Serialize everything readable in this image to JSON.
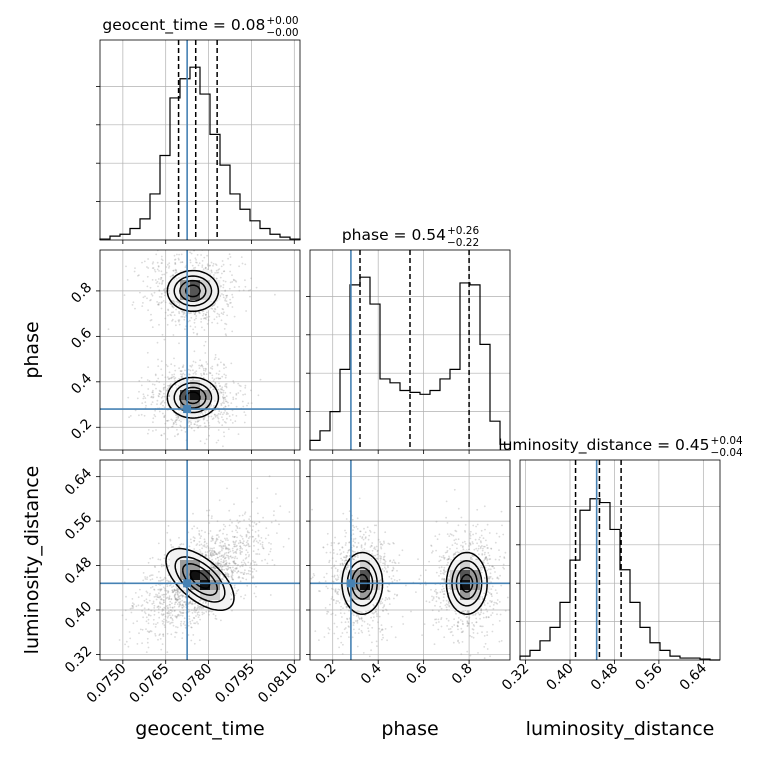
{
  "chart_data": {
    "type": "corner",
    "truth_color": "#4682b4",
    "parameters": [
      {
        "key": "geocent_time",
        "label": "geocent_time",
        "range": [
          0.0742,
          0.0812
        ],
        "ticks": [
          0.075,
          0.0765,
          0.078,
          0.0795,
          0.081
        ],
        "tick_labels": [
          "0.0750",
          "0.0765",
          "0.0780",
          "0.0795",
          "0.0810"
        ],
        "truth": 0.07725,
        "quantiles": [
          0.07695,
          0.07755,
          0.0783
        ],
        "title": {
          "main": "geocent_time = 0.08",
          "sup": "+0.00",
          "sub": "−0.00"
        },
        "hist": [
          0.005,
          0.02,
          0.03,
          0.06,
          0.11,
          0.24,
          0.44,
          0.74,
          0.84,
          0.9,
          0.76,
          0.55,
          0.39,
          0.24,
          0.16,
          0.1,
          0.06,
          0.03,
          0.015,
          0.005
        ]
      },
      {
        "key": "phase",
        "label": "phase",
        "range": [
          0.1,
          0.98
        ],
        "ticks": [
          0.2,
          0.4,
          0.6,
          0.8
        ],
        "tick_labels": [
          "0.2",
          "0.4",
          "0.6",
          "0.8"
        ],
        "truth": 0.28,
        "quantiles": [
          0.32,
          0.54,
          0.8
        ],
        "title": {
          "main": "phase = 0.54",
          "sup": "+0.26",
          "sub": "−0.22"
        },
        "hist": [
          0.05,
          0.1,
          0.2,
          0.42,
          0.86,
          0.9,
          0.76,
          0.37,
          0.35,
          0.31,
          0.3,
          0.29,
          0.31,
          0.37,
          0.42,
          0.87,
          0.86,
          0.55,
          0.15,
          0.03
        ]
      },
      {
        "key": "luminosity_distance",
        "label": "luminosity_distance",
        "range": [
          0.31,
          0.67
        ],
        "ticks": [
          0.32,
          0.4,
          0.48,
          0.56,
          0.64
        ],
        "tick_labels": [
          "0.32",
          "0.40",
          "0.48",
          "0.56",
          "0.64"
        ],
        "truth": 0.448,
        "quantiles": [
          0.41,
          0.453,
          0.492
        ],
        "title": {
          "main": "luminosity_distance = 0.45",
          "sup": "+0.04",
          "sub": "−0.04"
        },
        "hist": [
          0.02,
          0.05,
          0.1,
          0.17,
          0.3,
          0.52,
          0.78,
          0.84,
          0.82,
          0.68,
          0.47,
          0.3,
          0.17,
          0.09,
          0.05,
          0.02,
          0.01,
          0.01,
          0.005,
          0.0
        ]
      }
    ],
    "density_2d": [
      {
        "x": "geocent_time",
        "y": "phase",
        "modes": [
          {
            "x": 0.07745,
            "y": 0.8,
            "sx": 0.00045,
            "sy": 0.045,
            "w": 1.0
          },
          {
            "x": 0.07745,
            "y": 0.33,
            "sx": 0.00045,
            "sy": 0.045,
            "w": 1.0
          }
        ]
      },
      {
        "x": "geocent_time",
        "y": "luminosity_distance",
        "modes": [
          {
            "x": 0.0777,
            "y": 0.455,
            "sx": 0.0006,
            "sy": 0.028,
            "rho": -0.6,
            "w": 1.0
          }
        ]
      },
      {
        "x": "phase",
        "y": "luminosity_distance",
        "modes": [
          {
            "x": 0.33,
            "y": 0.448,
            "sx": 0.045,
            "sy": 0.028,
            "w": 1.0
          },
          {
            "x": 0.79,
            "y": 0.448,
            "sx": 0.045,
            "sy": 0.028,
            "w": 1.0
          }
        ]
      }
    ]
  }
}
